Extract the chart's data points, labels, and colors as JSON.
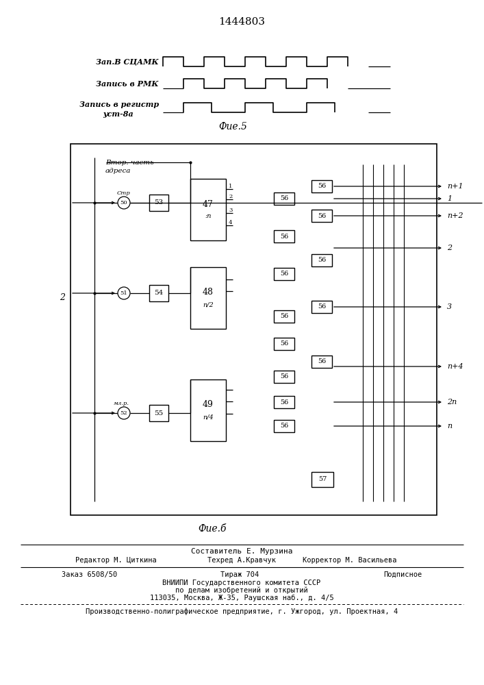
{
  "title": "1444803",
  "fig5_label": "Фие.5",
  "fig6_label": "Фие.б",
  "signal_label1": "Зап.В СЦАМК",
  "signal_label2": "Запись в РМК",
  "signal_label3a": "Запись в регистр",
  "signal_label3b": "уст-8а",
  "footer_line1": "Составитель Е. Мурзина",
  "footer_l2_left": "Редактор М. Циткина",
  "footer_l2_mid": "Техред А.Кравчук",
  "footer_l2_right": "Корректор М. Васильева",
  "footer_l3_left": "Заказ 6508/50",
  "footer_l3_mid": "Тираж 704",
  "footer_l3_right": "Подписное",
  "footer_l4": "ВНИИПИ Государственного комитета СССР",
  "footer_l5": "по делам изобретений и открытий",
  "footer_l6": "113035, Москва, Ж-35, Раушская наб., д. 4/5",
  "footer_l7": "Производственно-полиграфическое предприятие, г. Ужгород, ул. Проектная, 4",
  "bg_color": "#ffffff",
  "lc": "#000000"
}
